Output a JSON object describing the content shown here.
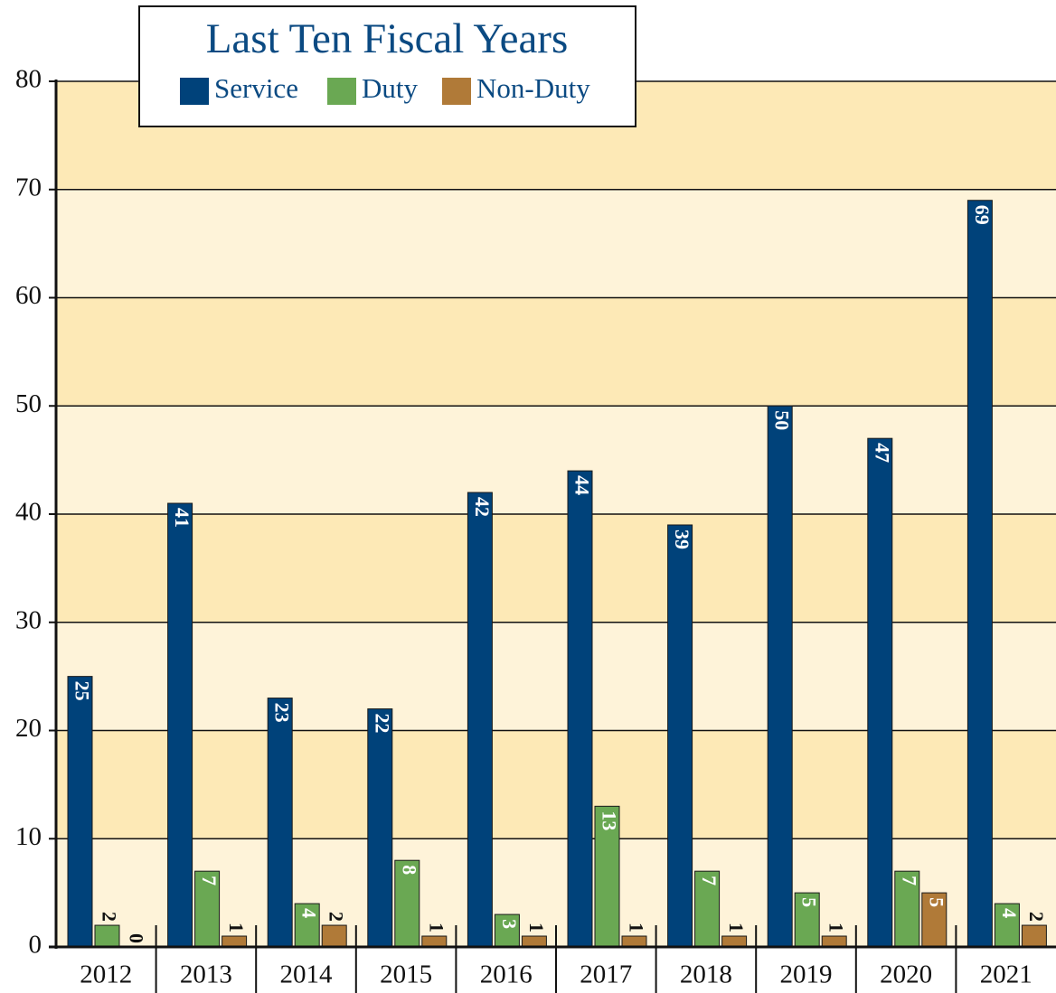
{
  "chart_data": {
    "type": "bar",
    "title": "Last Ten Fiscal Years",
    "categories": [
      "2012",
      "2013",
      "2014",
      "2015",
      "2016",
      "2017",
      "2018",
      "2019",
      "2020",
      "2021"
    ],
    "series": [
      {
        "name": "Service",
        "color": "#00427a",
        "values": [
          25,
          41,
          23,
          22,
          42,
          44,
          39,
          50,
          47,
          69
        ]
      },
      {
        "name": "Duty",
        "color": "#6aa853",
        "values": [
          2,
          7,
          4,
          8,
          3,
          13,
          7,
          5,
          7,
          4
        ]
      },
      {
        "name": "Non-Duty",
        "color": "#b07a38",
        "values": [
          0,
          1,
          2,
          1,
          1,
          1,
          1,
          1,
          5,
          2
        ]
      }
    ],
    "ylim": [
      0,
      80
    ],
    "yticks": [
      0,
      10,
      20,
      30,
      40,
      50,
      60,
      70,
      80
    ],
    "grid": true
  }
}
